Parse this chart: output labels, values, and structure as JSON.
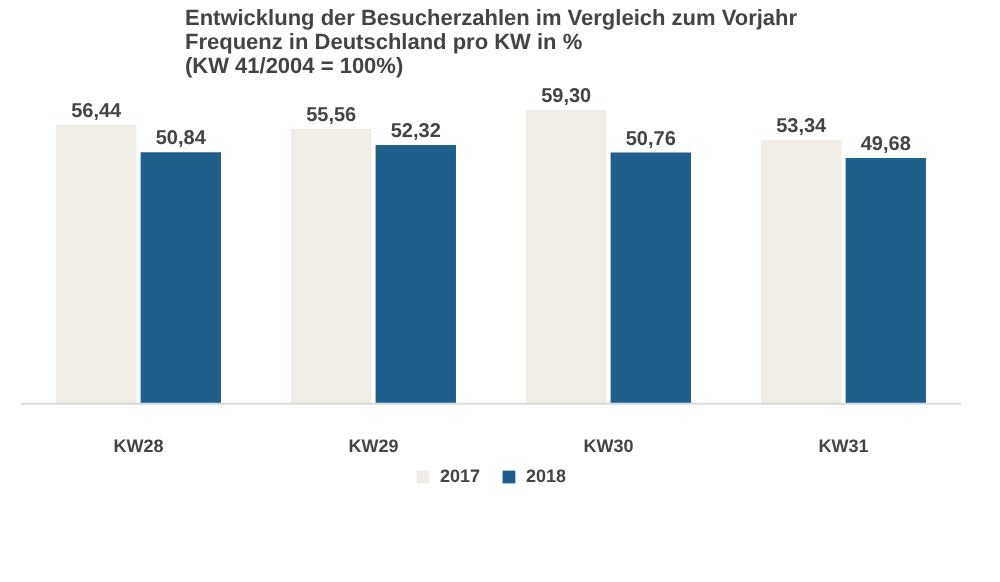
{
  "chart_data": {
    "type": "bar",
    "title": "Entwicklung der Besucherzahlen im Vergleich zum Vorjahr\nFrequenz in Deutschland pro KW in %\n(KW 41/2004 = 100%)",
    "categories": [
      "KW28",
      "KW29",
      "KW30",
      "KW31"
    ],
    "series": [
      {
        "name": "2017",
        "color": "#f0ede6",
        "values": [
          56.44,
          55.56,
          59.3,
          53.34
        ],
        "value_labels": [
          "56,44",
          "55,56",
          "59,30",
          "53,34"
        ]
      },
      {
        "name": "2018",
        "color": "#1f5f8b",
        "values": [
          50.84,
          52.32,
          50.76,
          49.68
        ],
        "value_labels": [
          "50,84",
          "52,32",
          "50,76",
          "49,68"
        ]
      }
    ],
    "legend": "bottom"
  }
}
